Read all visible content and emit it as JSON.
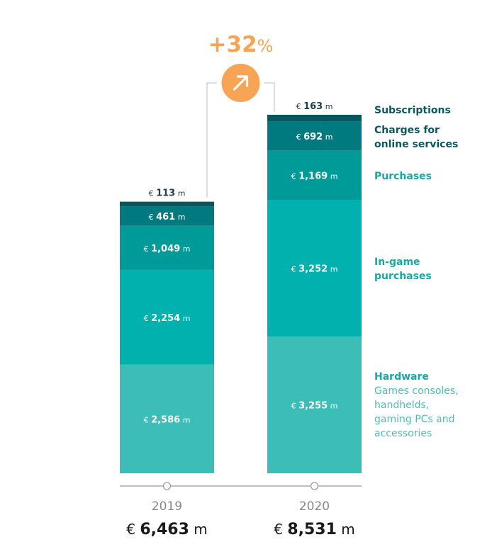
{
  "colors": {
    "hardware": "#3dbdb7",
    "in_game": "#00b1ad",
    "purchases": "#009a98",
    "charges": "#007a7e",
    "subscriptions": "#07575f",
    "orange": "#f7a555",
    "axis": "#9b9b9b",
    "legend_dark": "#0c5860",
    "legend_teal": "#15a9a5",
    "legend_light": "#49bfb9"
  },
  "chart_data": {
    "type": "bar",
    "stacked": true,
    "categories": [
      "2019",
      "2020"
    ],
    "currency_symbol": "€",
    "unit": "m",
    "series": [
      {
        "key": "hardware",
        "name": "Hardware",
        "values": [
          2586,
          3255
        ],
        "labels": [
          "2,586",
          "3,255"
        ]
      },
      {
        "key": "in_game",
        "name": "In-game purchases",
        "values": [
          2254,
          3252
        ],
        "labels": [
          "2,254",
          "3,252"
        ]
      },
      {
        "key": "purchases",
        "name": "Purchases",
        "values": [
          1049,
          1169
        ],
        "labels": [
          "1,049",
          "1,169"
        ]
      },
      {
        "key": "charges",
        "name": "Charges for online services",
        "values": [
          461,
          692
        ],
        "labels": [
          "461",
          "692"
        ]
      },
      {
        "key": "subscriptions",
        "name": "Subscriptions",
        "values": [
          113,
          163
        ],
        "labels": [
          "113",
          "163"
        ]
      }
    ],
    "totals": [
      {
        "year": "2019",
        "value": 6463,
        "label": "6,463"
      },
      {
        "year": "2020",
        "value": 8531,
        "label": "8,531"
      }
    ],
    "growth": {
      "value": "+32",
      "suffix": "%",
      "icon": "arrow-up-right-icon"
    },
    "legend_position": "right",
    "legend": [
      {
        "key": "subscriptions",
        "lines": [
          "Subscriptions"
        ],
        "sub": []
      },
      {
        "key": "charges",
        "lines": [
          "Charges for",
          "online services"
        ],
        "sub": []
      },
      {
        "key": "purchases",
        "lines": [
          "Purchases"
        ],
        "sub": []
      },
      {
        "key": "in_game",
        "lines": [
          "In-game",
          "purchases"
        ],
        "sub": []
      },
      {
        "key": "hardware",
        "lines": [
          "Hardware"
        ],
        "sub": [
          "Games consoles,",
          "handhelds,",
          "gaming PCs and",
          "accessories"
        ]
      }
    ],
    "grid": false
  }
}
